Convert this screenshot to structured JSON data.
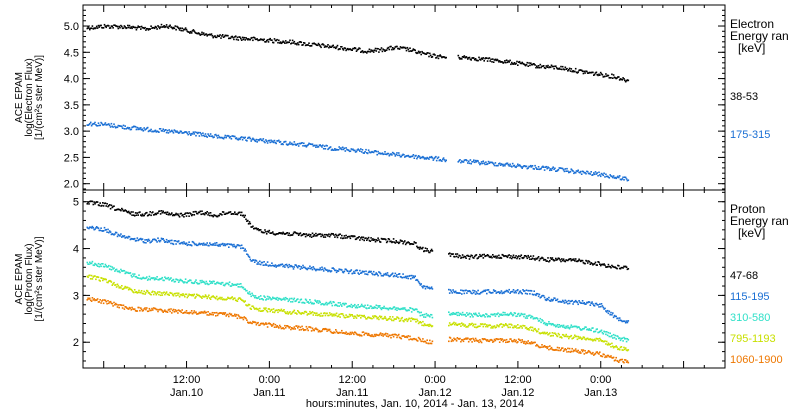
{
  "xlabel": "hours:minutes, Jan. 10, 2014 - Jan. 13, 2014",
  "x_ticks": [
    {
      "t": 12,
      "label": "12:00",
      "date": "Jan.10"
    },
    {
      "t": 24,
      "label": "0:00",
      "date": "Jan.11"
    },
    {
      "t": 36,
      "label": "12:00",
      "date": "Jan.11"
    },
    {
      "t": 48,
      "label": "0:00",
      "date": "Jan.12"
    },
    {
      "t": 60,
      "label": "12:00",
      "date": "Jan.12"
    },
    {
      "t": 72,
      "label": "0:00",
      "date": "Jan.13"
    }
  ],
  "chart_data": [
    {
      "type": "scatter",
      "ylabel": [
        "ACE EPAM",
        "log(Electron Flux)",
        "[1/(cm²s ster MeV)]"
      ],
      "legend_title": [
        "Electron",
        "Energy ran",
        "[keV]"
      ],
      "xlim": [
        -3,
        90
      ],
      "ylim": [
        1.88,
        5.4
      ],
      "y_ticks": [
        2.0,
        2.5,
        3.0,
        3.5,
        4.0,
        4.5,
        5.0
      ],
      "y_tick_labels": [
        "2.0",
        "2.5",
        "3.0",
        "3.5",
        "4.0",
        "4.5",
        "5.0"
      ],
      "series": [
        {
          "name": "38-53",
          "color": "#000000",
          "points": [
            [
              -2.5,
              4.98
            ],
            [
              0,
              5.01
            ],
            [
              3,
              5.0
            ],
            [
              6,
              4.96
            ],
            [
              9,
              5.02
            ],
            [
              12,
              4.93
            ],
            [
              15,
              4.84
            ],
            [
              18,
              4.8
            ],
            [
              21,
              4.77
            ],
            [
              24,
              4.74
            ],
            [
              27,
              4.71
            ],
            [
              30,
              4.66
            ],
            [
              33,
              4.62
            ],
            [
              36,
              4.57
            ],
            [
              38,
              4.54
            ],
            [
              40,
              4.56
            ],
            [
              42,
              4.6
            ],
            [
              44,
              4.57
            ],
            [
              46,
              4.49
            ],
            [
              48,
              4.44
            ],
            [
              50,
              4.41
            ],
            [
              52,
              4.42
            ],
            [
              55,
              4.38
            ],
            [
              58,
              4.34
            ],
            [
              60,
              4.3
            ],
            [
              63,
              4.25
            ],
            [
              66,
              4.22
            ],
            [
              69,
              4.15
            ],
            [
              72,
              4.09
            ],
            [
              74,
              4.05
            ],
            [
              76,
              3.97
            ]
          ],
          "gaps": [
            [
              49.5,
              51.2
            ]
          ]
        },
        {
          "name": "175-315",
          "color": "#1a6fd4",
          "points": [
            [
              -2.5,
              3.16
            ],
            [
              0,
              3.14
            ],
            [
              3,
              3.09
            ],
            [
              6,
              3.05
            ],
            [
              9,
              3.01
            ],
            [
              12,
              2.98
            ],
            [
              15,
              2.93
            ],
            [
              18,
              2.89
            ],
            [
              21,
              2.86
            ],
            [
              24,
              2.82
            ],
            [
              27,
              2.78
            ],
            [
              30,
              2.74
            ],
            [
              33,
              2.69
            ],
            [
              36,
              2.66
            ],
            [
              39,
              2.61
            ],
            [
              42,
              2.57
            ],
            [
              45,
              2.53
            ],
            [
              48,
              2.49
            ],
            [
              50,
              2.46
            ],
            [
              52,
              2.44
            ],
            [
              55,
              2.41
            ],
            [
              58,
              2.38
            ],
            [
              60,
              2.35
            ],
            [
              63,
              2.32
            ],
            [
              66,
              2.28
            ],
            [
              69,
              2.23
            ],
            [
              72,
              2.19
            ],
            [
              74,
              2.14
            ],
            [
              76,
              2.1
            ]
          ],
          "gaps": [
            [
              49.5,
              51.2
            ]
          ]
        }
      ]
    },
    {
      "type": "scatter",
      "ylabel": [
        "ACE EPAM",
        "log(Proton Flux)",
        "[1/(cm²s ster MeV)]"
      ],
      "legend_title": [
        "Proton",
        "Energy ran",
        "[keV]"
      ],
      "xlim": [
        -3,
        90
      ],
      "ylim": [
        1.45,
        5.25
      ],
      "y_ticks": [
        2,
        3,
        4,
        5
      ],
      "y_tick_labels": [
        "2",
        "3",
        "4",
        "5"
      ],
      "series": [
        {
          "name": "47-68",
          "color": "#000000",
          "points": [
            [
              -2.5,
              5.0
            ],
            [
              0,
              4.95
            ],
            [
              2,
              4.85
            ],
            [
              4,
              4.76
            ],
            [
              6,
              4.75
            ],
            [
              8,
              4.8
            ],
            [
              10,
              4.73
            ],
            [
              12,
              4.74
            ],
            [
              14,
              4.79
            ],
            [
              16,
              4.72
            ],
            [
              18,
              4.79
            ],
            [
              20,
              4.76
            ],
            [
              21,
              4.55
            ],
            [
              22,
              4.41
            ],
            [
              24,
              4.36
            ],
            [
              27,
              4.33
            ],
            [
              30,
              4.3
            ],
            [
              33,
              4.3
            ],
            [
              36,
              4.25
            ],
            [
              39,
              4.2
            ],
            [
              42,
              4.18
            ],
            [
              45,
              4.12
            ],
            [
              46,
              4.0
            ],
            [
              48,
              3.95
            ],
            [
              50,
              3.88
            ],
            [
              53,
              3.83
            ],
            [
              56,
              3.86
            ],
            [
              58,
              3.85
            ],
            [
              60,
              3.84
            ],
            [
              62,
              3.82
            ],
            [
              64,
              3.78
            ],
            [
              67,
              3.77
            ],
            [
              70,
              3.73
            ],
            [
              72,
              3.68
            ],
            [
              74,
              3.62
            ],
            [
              76,
              3.6
            ]
          ],
          "gaps": [
            [
              47.5,
              49.8
            ]
          ]
        },
        {
          "name": "115-195",
          "color": "#1a6fd4",
          "points": [
            [
              -2.5,
              4.48
            ],
            [
              0,
              4.42
            ],
            [
              2,
              4.3
            ],
            [
              4,
              4.22
            ],
            [
              6,
              4.18
            ],
            [
              8,
              4.2
            ],
            [
              10,
              4.15
            ],
            [
              12,
              4.12
            ],
            [
              14,
              4.12
            ],
            [
              16,
              4.1
            ],
            [
              18,
              4.08
            ],
            [
              20,
              4.05
            ],
            [
              21,
              3.82
            ],
            [
              22,
              3.72
            ],
            [
              24,
              3.68
            ],
            [
              27,
              3.63
            ],
            [
              30,
              3.6
            ],
            [
              33,
              3.56
            ],
            [
              36,
              3.52
            ],
            [
              39,
              3.49
            ],
            [
              42,
              3.45
            ],
            [
              45,
              3.4
            ],
            [
              46,
              3.22
            ],
            [
              48,
              3.12
            ],
            [
              50,
              3.1
            ],
            [
              53,
              3.08
            ],
            [
              56,
              3.1
            ],
            [
              58,
              3.1
            ],
            [
              60,
              3.1
            ],
            [
              62,
              3.08
            ],
            [
              64,
              2.95
            ],
            [
              67,
              2.88
            ],
            [
              70,
              2.86
            ],
            [
              72,
              2.8
            ],
            [
              74,
              2.55
            ],
            [
              76,
              2.45
            ]
          ],
          "gaps": [
            [
              47.5,
              49.8
            ]
          ]
        },
        {
          "name": "310-580",
          "color": "#30e0c8",
          "points": [
            [
              -2.5,
              3.72
            ],
            [
              0,
              3.65
            ],
            [
              2,
              3.55
            ],
            [
              4,
              3.45
            ],
            [
              6,
              3.38
            ],
            [
              8,
              3.38
            ],
            [
              10,
              3.35
            ],
            [
              12,
              3.32
            ],
            [
              14,
              3.3
            ],
            [
              16,
              3.28
            ],
            [
              18,
              3.26
            ],
            [
              20,
              3.22
            ],
            [
              21,
              3.05
            ],
            [
              22,
              2.98
            ],
            [
              24,
              2.95
            ],
            [
              27,
              2.92
            ],
            [
              30,
              2.88
            ],
            [
              33,
              2.84
            ],
            [
              36,
              2.8
            ],
            [
              39,
              2.77
            ],
            [
              42,
              2.74
            ],
            [
              45,
              2.7
            ],
            [
              46,
              2.6
            ],
            [
              48,
              2.55
            ],
            [
              50,
              2.62
            ],
            [
              53,
              2.6
            ],
            [
              56,
              2.6
            ],
            [
              58,
              2.62
            ],
            [
              60,
              2.6
            ],
            [
              62,
              2.55
            ],
            [
              64,
              2.42
            ],
            [
              67,
              2.35
            ],
            [
              70,
              2.3
            ],
            [
              72,
              2.25
            ],
            [
              74,
              2.12
            ],
            [
              76,
              2.05
            ]
          ],
          "gaps": [
            [
              47.5,
              49.8
            ]
          ]
        },
        {
          "name": "795-1193",
          "color": "#c8e000",
          "points": [
            [
              -2.5,
              3.42
            ],
            [
              0,
              3.35
            ],
            [
              2,
              3.22
            ],
            [
              4,
              3.12
            ],
            [
              6,
              3.08
            ],
            [
              8,
              3.06
            ],
            [
              10,
              3.04
            ],
            [
              12,
              3.01
            ],
            [
              14,
              2.99
            ],
            [
              16,
              2.97
            ],
            [
              18,
              2.95
            ],
            [
              20,
              2.92
            ],
            [
              21,
              2.78
            ],
            [
              22,
              2.72
            ],
            [
              24,
              2.7
            ],
            [
              27,
              2.66
            ],
            [
              30,
              2.63
            ],
            [
              33,
              2.6
            ],
            [
              36,
              2.57
            ],
            [
              39,
              2.55
            ],
            [
              42,
              2.52
            ],
            [
              45,
              2.48
            ],
            [
              46,
              2.42
            ],
            [
              48,
              2.38
            ],
            [
              50,
              2.4
            ],
            [
              53,
              2.38
            ],
            [
              56,
              2.36
            ],
            [
              58,
              2.38
            ],
            [
              60,
              2.35
            ],
            [
              62,
              2.3
            ],
            [
              64,
              2.2
            ],
            [
              67,
              2.14
            ],
            [
              70,
              2.1
            ],
            [
              72,
              2.05
            ],
            [
              74,
              1.92
            ],
            [
              76,
              1.85
            ]
          ],
          "gaps": [
            [
              47.5,
              49.8
            ]
          ]
        },
        {
          "name": "1060-1900",
          "color": "#ee7700",
          "points": [
            [
              -2.5,
              2.95
            ],
            [
              0,
              2.88
            ],
            [
              2,
              2.8
            ],
            [
              4,
              2.72
            ],
            [
              6,
              2.72
            ],
            [
              8,
              2.7
            ],
            [
              10,
              2.68
            ],
            [
              12,
              2.66
            ],
            [
              14,
              2.64
            ],
            [
              16,
              2.62
            ],
            [
              18,
              2.6
            ],
            [
              20,
              2.55
            ],
            [
              21,
              2.45
            ],
            [
              22,
              2.4
            ],
            [
              24,
              2.38
            ],
            [
              27,
              2.33
            ],
            [
              30,
              2.3
            ],
            [
              33,
              2.25
            ],
            [
              36,
              2.2
            ],
            [
              39,
              2.18
            ],
            [
              42,
              2.15
            ],
            [
              45,
              2.1
            ],
            [
              46,
              2.05
            ],
            [
              48,
              2.0
            ],
            [
              50,
              2.08
            ],
            [
              53,
              2.06
            ],
            [
              56,
              2.05
            ],
            [
              58,
              2.06
            ],
            [
              60,
              2.04
            ],
            [
              62,
              2.0
            ],
            [
              64,
              1.9
            ],
            [
              67,
              1.85
            ],
            [
              70,
              1.8
            ],
            [
              72,
              1.76
            ],
            [
              74,
              1.65
            ],
            [
              76,
              1.58
            ]
          ],
          "gaps": [
            [
              47.5,
              49.8
            ]
          ]
        }
      ]
    }
  ]
}
